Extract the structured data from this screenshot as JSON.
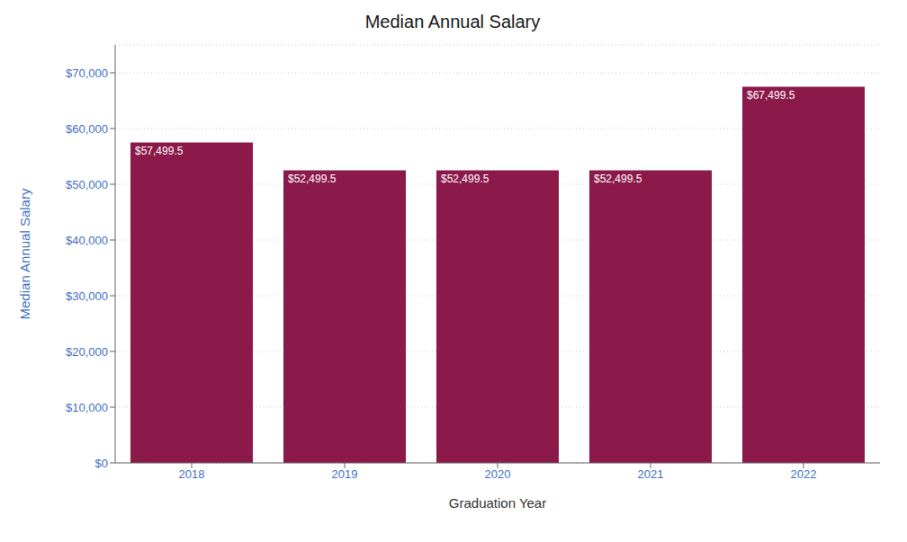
{
  "chart_data": {
    "type": "bar",
    "title": "Median Annual Salary",
    "xlabel": "Graduation Year",
    "ylabel": "Median Annual Salary",
    "categories": [
      "2018",
      "2019",
      "2020",
      "2021",
      "2022"
    ],
    "values": [
      57499.5,
      52499.5,
      52499.5,
      52499.5,
      67499.5
    ],
    "value_labels": [
      "$57,499.5",
      "$52,499.5",
      "$52,499.5",
      "$52,499.5",
      "$67,499.5"
    ],
    "data_labels": true,
    "color": "#8B1A4A",
    "ylim": [
      0,
      75000
    ],
    "yticks": [
      {
        "value": 0,
        "label": "$0"
      },
      {
        "value": 10000,
        "label": "$10,000"
      },
      {
        "value": 20000,
        "label": "$20,000"
      },
      {
        "value": 30000,
        "label": "$30,000"
      },
      {
        "value": 40000,
        "label": "$40,000"
      },
      {
        "value": 50000,
        "label": "$50,000"
      },
      {
        "value": 60000,
        "label": "$60,000"
      },
      {
        "value": 70000,
        "label": "$70,000"
      }
    ],
    "grid": true
  }
}
